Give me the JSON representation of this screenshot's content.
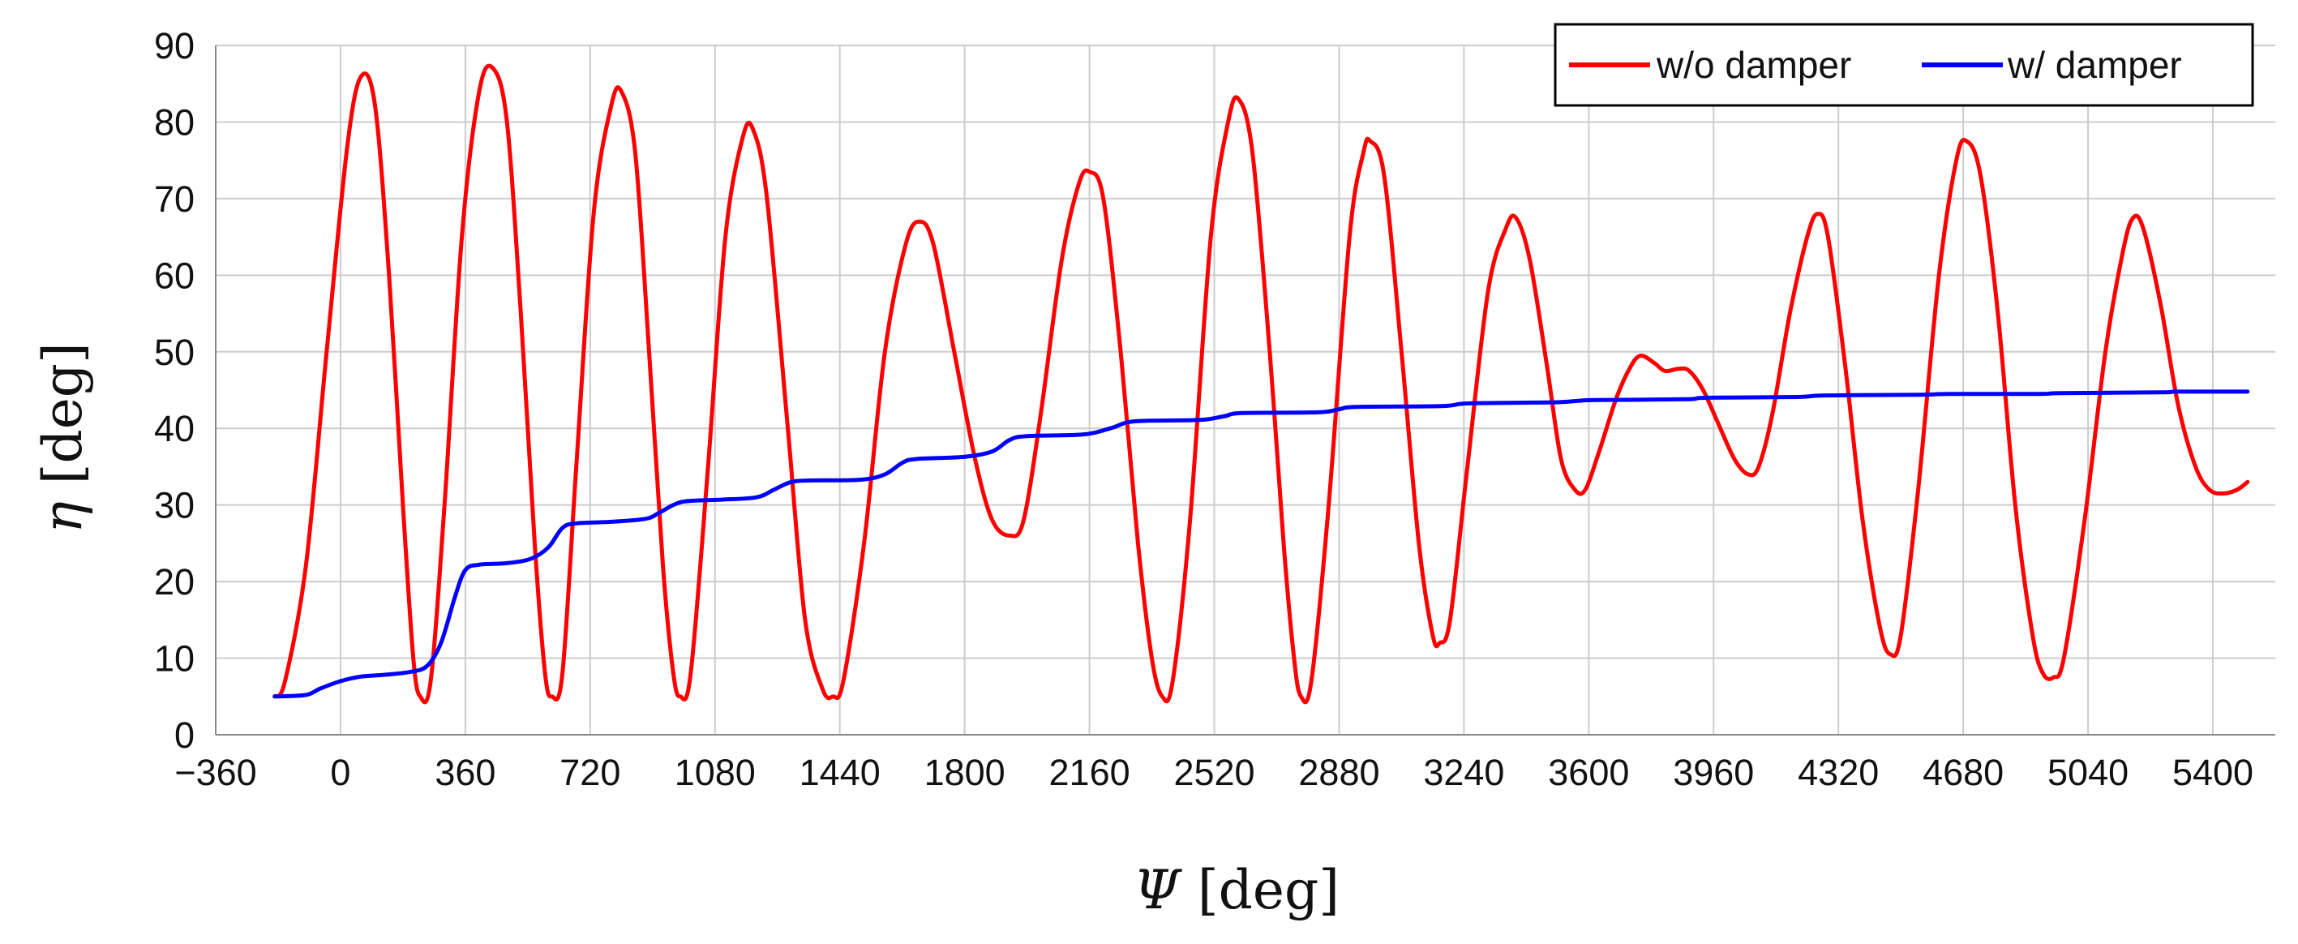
{
  "chart_data": {
    "type": "line",
    "xlabel_symbol": "Ψ",
    "xlabel_unit": " [deg]",
    "ylabel_symbol": "η",
    "ylabel_unit": " [deg]",
    "xlim": [
      -360,
      5580
    ],
    "ylim": [
      0,
      90
    ],
    "x_ticks": [
      -360,
      0,
      360,
      720,
      1080,
      1440,
      1800,
      2160,
      2520,
      2880,
      3240,
      3600,
      3960,
      4320,
      4680,
      5040,
      5400
    ],
    "x_tick_labels": [
      "−360",
      "0",
      "360",
      "720",
      "1080",
      "1440",
      "1800",
      "2160",
      "2520",
      "2880",
      "3240",
      "3600",
      "3960",
      "4320",
      "4680",
      "5040",
      "5400"
    ],
    "y_ticks": [
      0,
      10,
      20,
      30,
      40,
      50,
      60,
      70,
      80,
      90
    ],
    "grid": true,
    "legend_position": "top-right",
    "series": [
      {
        "name": "w/o damper",
        "color": "#ff0000",
        "points": [
          [
            -190,
            5
          ],
          [
            -160,
            7
          ],
          [
            -100,
            22
          ],
          [
            -40,
            50
          ],
          [
            20,
            77
          ],
          [
            60,
            86
          ],
          [
            100,
            82
          ],
          [
            140,
            60
          ],
          [
            180,
            30
          ],
          [
            210,
            10
          ],
          [
            230,
            5
          ],
          [
            260,
            7
          ],
          [
            300,
            30
          ],
          [
            350,
            65
          ],
          [
            400,
            84
          ],
          [
            440,
            87
          ],
          [
            480,
            80
          ],
          [
            520,
            55
          ],
          [
            560,
            25
          ],
          [
            590,
            8
          ],
          [
            610,
            5
          ],
          [
            640,
            8
          ],
          [
            680,
            35
          ],
          [
            730,
            68
          ],
          [
            780,
            82
          ],
          [
            810,
            84
          ],
          [
            850,
            76
          ],
          [
            890,
            50
          ],
          [
            930,
            22
          ],
          [
            960,
            8
          ],
          [
            980,
            5
          ],
          [
            1010,
            8
          ],
          [
            1060,
            35
          ],
          [
            1110,
            65
          ],
          [
            1160,
            78
          ],
          [
            1190,
            79
          ],
          [
            1230,
            70
          ],
          [
            1290,
            40
          ],
          [
            1340,
            15
          ],
          [
            1390,
            6
          ],
          [
            1420,
            5
          ],
          [
            1450,
            7
          ],
          [
            1510,
            25
          ],
          [
            1570,
            50
          ],
          [
            1630,
            64
          ],
          [
            1670,
            67
          ],
          [
            1710,
            64
          ],
          [
            1770,
            50
          ],
          [
            1830,
            36
          ],
          [
            1880,
            28
          ],
          [
            1930,
            26
          ],
          [
            1970,
            28
          ],
          [
            2020,
            42
          ],
          [
            2080,
            62
          ],
          [
            2130,
            72
          ],
          [
            2160,
            73.5
          ],
          [
            2200,
            70
          ],
          [
            2250,
            50
          ],
          [
            2300,
            25
          ],
          [
            2340,
            10
          ],
          [
            2370,
            5
          ],
          [
            2400,
            7
          ],
          [
            2450,
            28
          ],
          [
            2510,
            65
          ],
          [
            2560,
            80
          ],
          [
            2590,
            83
          ],
          [
            2630,
            76
          ],
          [
            2680,
            50
          ],
          [
            2720,
            25
          ],
          [
            2750,
            10
          ],
          [
            2770,
            5
          ],
          [
            2800,
            7
          ],
          [
            2850,
            30
          ],
          [
            2910,
            65
          ],
          [
            2950,
            76
          ],
          [
            2970,
            77.5
          ],
          [
            3010,
            73
          ],
          [
            3060,
            50
          ],
          [
            3110,
            25
          ],
          [
            3150,
            13
          ],
          [
            3170,
            12
          ],
          [
            3200,
            15
          ],
          [
            3250,
            35
          ],
          [
            3310,
            58
          ],
          [
            3360,
            66
          ],
          [
            3390,
            67.5
          ],
          [
            3430,
            62
          ],
          [
            3480,
            48
          ],
          [
            3520,
            36
          ],
          [
            3560,
            32
          ],
          [
            3590,
            32
          ],
          [
            3630,
            37
          ],
          [
            3680,
            44
          ],
          [
            3720,
            48
          ],
          [
            3750,
            49.5
          ],
          [
            3790,
            48.5
          ],
          [
            3820,
            47.5
          ],
          [
            3860,
            47.8
          ],
          [
            3890,
            47.5
          ],
          [
            3930,
            45
          ],
          [
            3970,
            41
          ],
          [
            4020,
            36
          ],
          [
            4060,
            34
          ],
          [
            4090,
            35
          ],
          [
            4130,
            42
          ],
          [
            4180,
            55
          ],
          [
            4230,
            65
          ],
          [
            4260,
            68
          ],
          [
            4290,
            65
          ],
          [
            4340,
            48
          ],
          [
            4390,
            28
          ],
          [
            4440,
            14
          ],
          [
            4470,
            10.5
          ],
          [
            4500,
            13
          ],
          [
            4550,
            32
          ],
          [
            4610,
            60
          ],
          [
            4660,
            75
          ],
          [
            4690,
            77.5
          ],
          [
            4730,
            73
          ],
          [
            4780,
            55
          ],
          [
            4830,
            30
          ],
          [
            4880,
            13
          ],
          [
            4910,
            8
          ],
          [
            4940,
            7.5
          ],
          [
            4970,
            10
          ],
          [
            5030,
            28
          ],
          [
            5090,
            50
          ],
          [
            5140,
            63
          ],
          [
            5170,
            67.5
          ],
          [
            5200,
            66
          ],
          [
            5250,
            56
          ],
          [
            5300,
            43
          ],
          [
            5350,
            35
          ],
          [
            5390,
            32
          ],
          [
            5430,
            31.5
          ],
          [
            5470,
            32
          ],
          [
            5500,
            33
          ]
        ]
      },
      {
        "name": "w/ damper",
        "color": "#0000ff",
        "points": [
          [
            -190,
            5
          ],
          [
            -100,
            5.2
          ],
          [
            -60,
            6
          ],
          [
            0,
            7
          ],
          [
            60,
            7.6
          ],
          [
            120,
            7.8
          ],
          [
            200,
            8.2
          ],
          [
            250,
            9
          ],
          [
            290,
            12
          ],
          [
            330,
            18
          ],
          [
            360,
            21.5
          ],
          [
            400,
            22.2
          ],
          [
            480,
            22.4
          ],
          [
            550,
            23
          ],
          [
            600,
            24.5
          ],
          [
            640,
            27
          ],
          [
            680,
            27.6
          ],
          [
            780,
            27.8
          ],
          [
            880,
            28.2
          ],
          [
            920,
            29
          ],
          [
            960,
            30
          ],
          [
            1000,
            30.5
          ],
          [
            1100,
            30.7
          ],
          [
            1200,
            31
          ],
          [
            1250,
            32
          ],
          [
            1300,
            33
          ],
          [
            1360,
            33.2
          ],
          [
            1500,
            33.3
          ],
          [
            1570,
            34
          ],
          [
            1620,
            35.5
          ],
          [
            1660,
            36
          ],
          [
            1800,
            36.3
          ],
          [
            1880,
            37
          ],
          [
            1930,
            38.5
          ],
          [
            1980,
            39
          ],
          [
            2140,
            39.2
          ],
          [
            2220,
            40
          ],
          [
            2270,
            40.8
          ],
          [
            2330,
            41
          ],
          [
            2480,
            41.1
          ],
          [
            2550,
            41.6
          ],
          [
            2600,
            42
          ],
          [
            2820,
            42.1
          ],
          [
            2880,
            42.5
          ],
          [
            2930,
            42.8
          ],
          [
            3170,
            42.9
          ],
          [
            3230,
            43.2
          ],
          [
            3280,
            43.3
          ],
          [
            3500,
            43.4
          ],
          [
            3570,
            43.6
          ],
          [
            3620,
            43.7
          ],
          [
            3880,
            43.8
          ],
          [
            3940,
            44
          ],
          [
            4200,
            44.1
          ],
          [
            4280,
            44.3
          ],
          [
            4560,
            44.4
          ],
          [
            4640,
            44.5
          ],
          [
            4900,
            44.5
          ],
          [
            4960,
            44.6
          ],
          [
            5250,
            44.7
          ],
          [
            5300,
            44.8
          ],
          [
            5500,
            44.8
          ]
        ]
      }
    ]
  }
}
